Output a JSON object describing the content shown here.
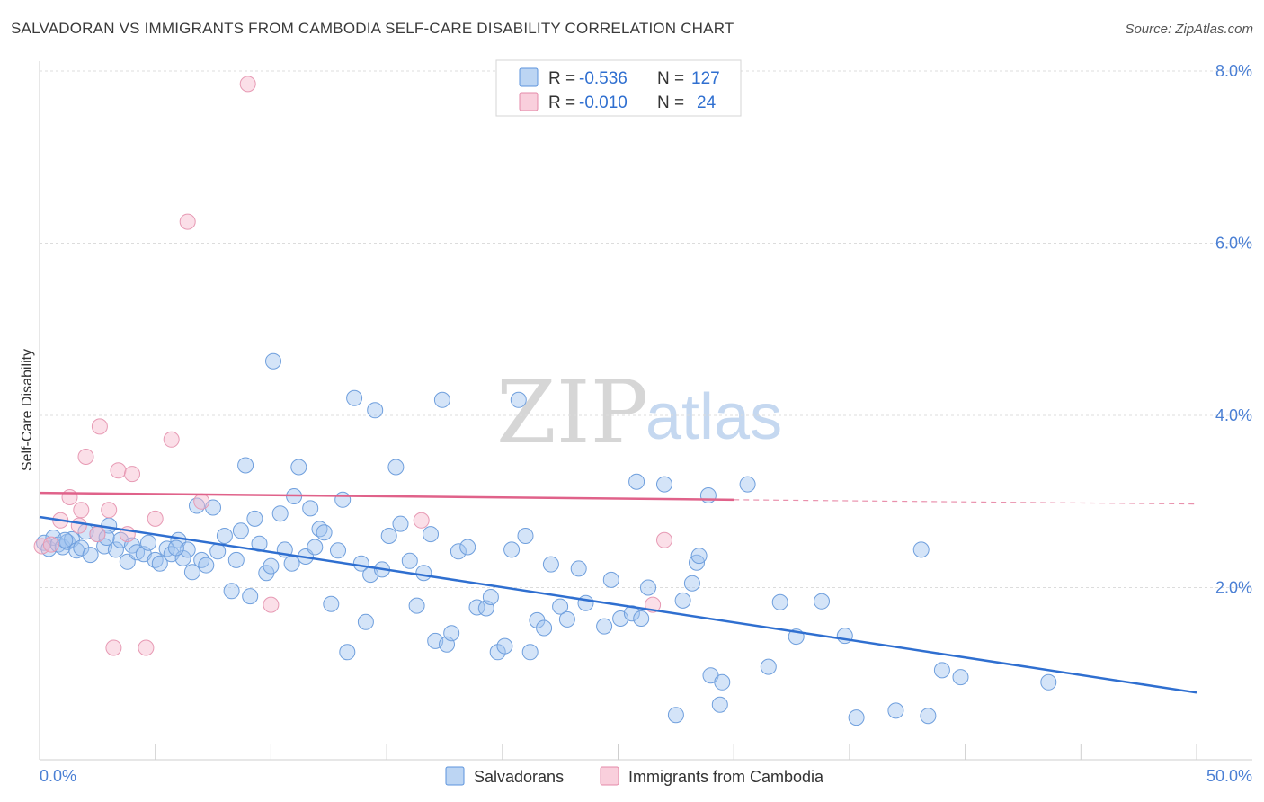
{
  "title": "SALVADORAN VS IMMIGRANTS FROM CAMBODIA SELF-CARE DISABILITY CORRELATION CHART",
  "source": "Source: ZipAtlas.com",
  "watermark": {
    "zip": "ZIP",
    "atlas": "atlas"
  },
  "legend": {
    "r_label": "R =",
    "n_label": "N =",
    "series": [
      {
        "name": "Salvadorans",
        "r": "-0.536",
        "n": "127",
        "color": "#9fc3ef",
        "stroke": "#5b93dc"
      },
      {
        "name": "Immigrants from Cambodia",
        "r": "-0.010",
        "n": "24",
        "color": "#f6b7cb",
        "stroke": "#e48aa8"
      }
    ]
  },
  "chart_data": {
    "type": "scatter",
    "title": "SALVADORAN VS IMMIGRANTS FROM CAMBODIA SELF-CARE DISABILITY CORRELATION CHART",
    "xlabel": "",
    "ylabel": "Self-Care Disability",
    "xlim": [
      0,
      50
    ],
    "ylim": [
      0,
      8.2
    ],
    "x_tick_labels": [
      "0.0%",
      "50.0%"
    ],
    "y_ticks": [
      2,
      4,
      6,
      8
    ],
    "y_tick_labels": [
      "2.0%",
      "4.0%",
      "6.0%",
      "8.0%"
    ],
    "series": [
      {
        "name": "Salvadorans",
        "color": "#9fc3ef",
        "trend": {
          "x": [
            0,
            50
          ],
          "y": [
            2.82,
            0.78
          ],
          "color": "#2f6fd0"
        },
        "points": [
          [
            0.2,
            2.52
          ],
          [
            0.4,
            2.45
          ],
          [
            0.6,
            2.58
          ],
          [
            0.8,
            2.5
          ],
          [
            1.0,
            2.47
          ],
          [
            1.2,
            2.53
          ],
          [
            1.4,
            2.56
          ],
          [
            1.6,
            2.43
          ],
          [
            1.8,
            2.46
          ],
          [
            2.0,
            2.65
          ],
          [
            2.2,
            2.38
          ],
          [
            2.5,
            2.62
          ],
          [
            2.8,
            2.48
          ],
          [
            3.0,
            2.72
          ],
          [
            3.3,
            2.44
          ],
          [
            3.5,
            2.55
          ],
          [
            3.8,
            2.3
          ],
          [
            4.0,
            2.49
          ],
          [
            4.2,
            2.41
          ],
          [
            4.5,
            2.39
          ],
          [
            4.7,
            2.52
          ],
          [
            5.0,
            2.32
          ],
          [
            5.2,
            2.28
          ],
          [
            5.5,
            2.45
          ],
          [
            5.7,
            2.39
          ],
          [
            6.0,
            2.55
          ],
          [
            6.2,
            2.34
          ],
          [
            6.4,
            2.44
          ],
          [
            6.6,
            2.18
          ],
          [
            6.8,
            2.95
          ],
          [
            7.0,
            2.32
          ],
          [
            7.2,
            2.26
          ],
          [
            7.5,
            2.93
          ],
          [
            7.7,
            2.42
          ],
          [
            8.0,
            2.6
          ],
          [
            8.3,
            1.96
          ],
          [
            8.5,
            2.32
          ],
          [
            8.7,
            2.66
          ],
          [
            8.9,
            3.42
          ],
          [
            9.1,
            1.9
          ],
          [
            9.3,
            2.8
          ],
          [
            9.5,
            2.51
          ],
          [
            9.8,
            2.17
          ],
          [
            10.0,
            2.25
          ],
          [
            10.1,
            4.63
          ],
          [
            10.4,
            2.86
          ],
          [
            10.6,
            2.44
          ],
          [
            10.9,
            2.28
          ],
          [
            11.0,
            3.06
          ],
          [
            11.2,
            3.4
          ],
          [
            11.5,
            2.36
          ],
          [
            11.7,
            2.92
          ],
          [
            11.9,
            2.47
          ],
          [
            12.1,
            2.68
          ],
          [
            12.3,
            2.64
          ],
          [
            12.6,
            1.81
          ],
          [
            12.9,
            2.43
          ],
          [
            13.1,
            3.02
          ],
          [
            13.3,
            1.25
          ],
          [
            13.6,
            4.2
          ],
          [
            13.9,
            2.28
          ],
          [
            14.1,
            1.6
          ],
          [
            14.3,
            2.15
          ],
          [
            14.5,
            4.06
          ],
          [
            14.8,
            2.21
          ],
          [
            15.1,
            2.6
          ],
          [
            15.4,
            3.4
          ],
          [
            15.6,
            2.74
          ],
          [
            16.0,
            2.31
          ],
          [
            16.3,
            1.79
          ],
          [
            16.6,
            2.17
          ],
          [
            16.9,
            2.62
          ],
          [
            17.1,
            1.38
          ],
          [
            17.4,
            4.18
          ],
          [
            17.6,
            1.34
          ],
          [
            17.8,
            1.47
          ],
          [
            18.1,
            2.42
          ],
          [
            18.5,
            2.47
          ],
          [
            18.9,
            1.77
          ],
          [
            19.3,
            1.76
          ],
          [
            19.5,
            1.89
          ],
          [
            19.8,
            1.25
          ],
          [
            20.1,
            1.32
          ],
          [
            20.4,
            2.44
          ],
          [
            20.7,
            4.18
          ],
          [
            21.0,
            2.6
          ],
          [
            21.2,
            1.25
          ],
          [
            21.5,
            1.62
          ],
          [
            21.8,
            1.53
          ],
          [
            22.1,
            2.27
          ],
          [
            22.5,
            1.78
          ],
          [
            22.8,
            1.63
          ],
          [
            23.3,
            2.22
          ],
          [
            23.6,
            1.82
          ],
          [
            24.4,
            1.55
          ],
          [
            24.7,
            2.09
          ],
          [
            25.1,
            1.64
          ],
          [
            25.6,
            1.7
          ],
          [
            25.8,
            3.23
          ],
          [
            26.0,
            1.64
          ],
          [
            26.3,
            2.0
          ],
          [
            27.0,
            3.2
          ],
          [
            27.5,
            0.52
          ],
          [
            27.8,
            1.85
          ],
          [
            28.2,
            2.05
          ],
          [
            28.4,
            2.29
          ],
          [
            28.5,
            2.37
          ],
          [
            28.9,
            3.07
          ],
          [
            29.0,
            0.98
          ],
          [
            29.4,
            0.64
          ],
          [
            29.5,
            0.9
          ],
          [
            30.6,
            3.2
          ],
          [
            31.5,
            1.08
          ],
          [
            32.0,
            1.83
          ],
          [
            32.7,
            1.43
          ],
          [
            33.8,
            1.84
          ],
          [
            34.8,
            1.44
          ],
          [
            35.3,
            0.49
          ],
          [
            37.0,
            0.57
          ],
          [
            38.1,
            2.44
          ],
          [
            38.4,
            0.51
          ],
          [
            39.0,
            1.04
          ],
          [
            39.8,
            0.96
          ],
          [
            43.6,
            0.9
          ],
          [
            1.1,
            2.55
          ],
          [
            2.9,
            2.58
          ],
          [
            5.9,
            2.46
          ]
        ]
      },
      {
        "name": "Immigrants from Cambodia",
        "color": "#f6b7cb",
        "trend": {
          "x": [
            0,
            30
          ],
          "y": [
            3.1,
            3.02
          ],
          "dashed_to": [
            50,
            2.97
          ],
          "color": "#e0628a"
        },
        "points": [
          [
            0.1,
            2.48
          ],
          [
            0.5,
            2.5
          ],
          [
            0.9,
            2.78
          ],
          [
            1.3,
            3.05
          ],
          [
            1.7,
            2.72
          ],
          [
            1.8,
            2.9
          ],
          [
            2.0,
            3.52
          ],
          [
            2.5,
            2.62
          ],
          [
            2.6,
            3.87
          ],
          [
            3.0,
            2.9
          ],
          [
            3.2,
            1.3
          ],
          [
            3.4,
            3.36
          ],
          [
            3.8,
            2.62
          ],
          [
            4.0,
            3.32
          ],
          [
            4.6,
            1.3
          ],
          [
            5.0,
            2.8
          ],
          [
            5.7,
            3.72
          ],
          [
            6.4,
            6.25
          ],
          [
            7.0,
            3.0
          ],
          [
            9.0,
            7.85
          ],
          [
            10.0,
            1.8
          ],
          [
            16.5,
            2.78
          ],
          [
            26.5,
            1.8
          ],
          [
            27.0,
            2.55
          ]
        ]
      }
    ]
  }
}
